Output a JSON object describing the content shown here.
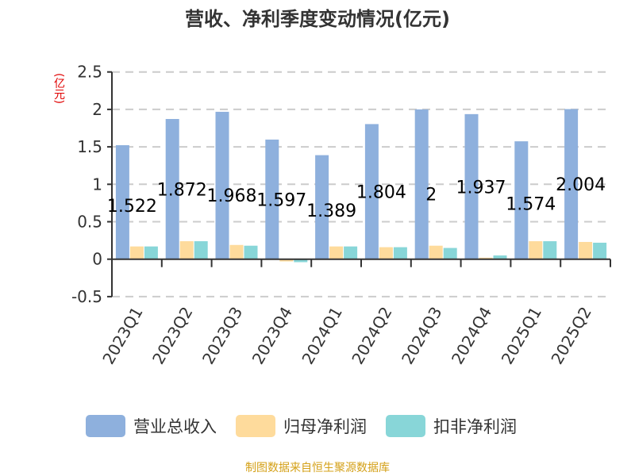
{
  "title": "营收、净利季度变动情况(亿元)",
  "unit_label": "(亿元)",
  "source": "制图数据来自恒生聚源数据库",
  "colors": {
    "revenue": "#8eb0dd",
    "net_profit_parent": "#fedb9c",
    "net_profit_deducted": "#88d6d8",
    "grid": "#cccccc",
    "axis": "#333333",
    "unit": "#e00000",
    "source": "#d4a017"
  },
  "legend": [
    {
      "label": "营业总收入",
      "color": "#8eb0dd"
    },
    {
      "label": "归母净利润",
      "color": "#fedb9c"
    },
    {
      "label": "扣非净利润",
      "color": "#88d6d8"
    }
  ],
  "chart_data": {
    "type": "bar",
    "title": "营收、净利季度变动情况(亿元)",
    "xlabel": "",
    "ylabel": "(亿元)",
    "ylim": [
      -0.5,
      2.5
    ],
    "yticks": [
      -0.5,
      0,
      0.5,
      1,
      1.5,
      2,
      2.5
    ],
    "ytick_labels": [
      "-0.5",
      "0",
      "0.5",
      "1",
      "1.5",
      "2",
      "2.5"
    ],
    "grid": true,
    "legend_position": "bottom",
    "categories": [
      "2023Q1",
      "2023Q2",
      "2023Q3",
      "2023Q4",
      "2024Q1",
      "2024Q2",
      "2024Q3",
      "2024Q4",
      "2025Q1",
      "2025Q2"
    ],
    "series": [
      {
        "name": "营业总收入",
        "values": [
          1.522,
          1.872,
          1.968,
          1.597,
          1.389,
          1.804,
          2.0,
          1.937,
          1.574,
          2.004
        ]
      },
      {
        "name": "归母净利润",
        "values": [
          0.17,
          0.24,
          0.19,
          -0.03,
          0.17,
          0.16,
          0.18,
          0.02,
          0.24,
          0.23
        ]
      },
      {
        "name": "扣非净利润",
        "values": [
          0.17,
          0.24,
          0.18,
          -0.04,
          0.17,
          0.16,
          0.15,
          0.05,
          0.24,
          0.22
        ]
      }
    ],
    "data_labels": [
      "1.522",
      "1.872",
      "1.968",
      "1.597",
      "1.389",
      "1.804",
      "2",
      "1.937",
      "1.574",
      "2.004"
    ]
  }
}
